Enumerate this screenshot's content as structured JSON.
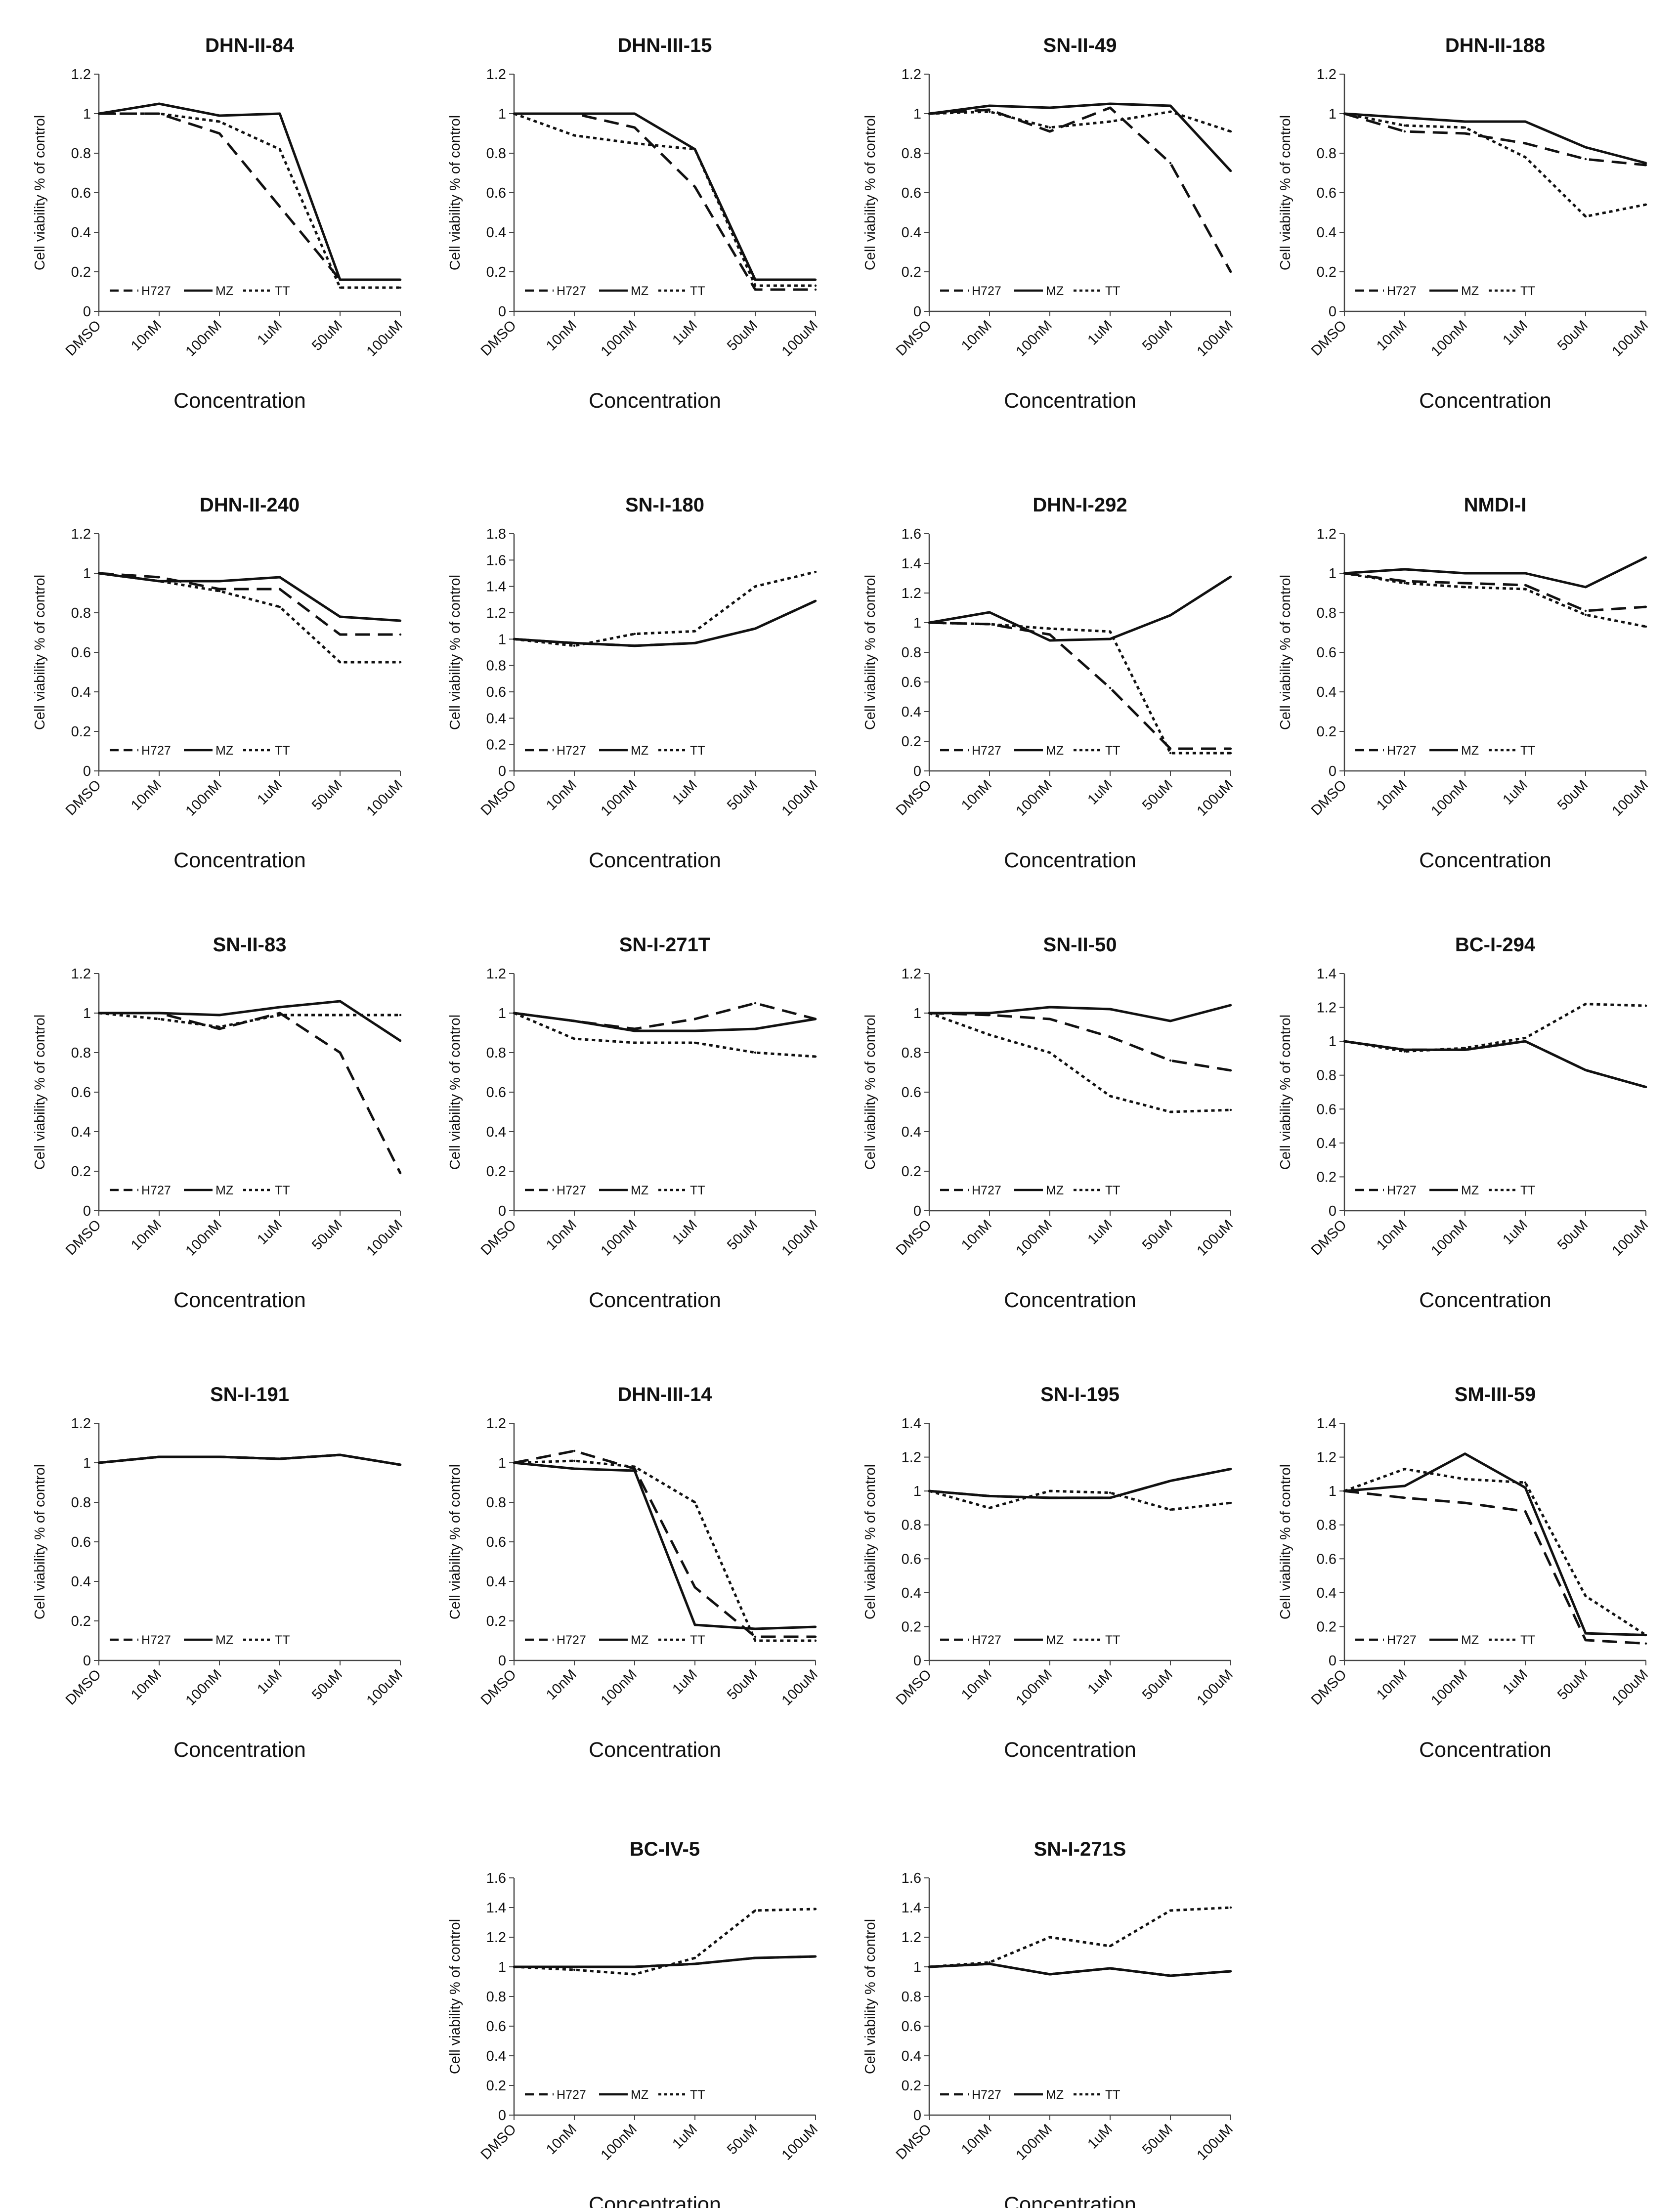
{
  "figure": {
    "x_axis_label": "Concentration",
    "y_axis_label": "Cell viability % of control",
    "legend_labels": [
      "H727",
      "MZ",
      "TT"
    ]
  },
  "chart_data": [
    {
      "type": "line",
      "title": "DHN-II-84",
      "categories": [
        "DMSO",
        "10nM",
        "100nM",
        "1uM",
        "50uM",
        "100uM"
      ],
      "xlabel": "Concentration",
      "ylabel": "Cell viability % of control",
      "ylim": [
        0,
        1.2
      ],
      "yticks": [
        "0",
        "0.2",
        "0.4",
        "0.6",
        "0.8",
        "1",
        "1.2"
      ],
      "legend": "bottom-left",
      "series": [
        {
          "name": "H727",
          "values": [
            1,
            1.0,
            0.9,
            0.53,
            0.16,
            0.16
          ]
        },
        {
          "name": "MZ",
          "values": [
            1,
            1.05,
            0.99,
            1.0,
            0.16,
            0.16
          ]
        },
        {
          "name": "TT",
          "values": [
            1,
            1.0,
            0.96,
            0.82,
            0.12,
            0.12
          ]
        }
      ]
    },
    {
      "type": "line",
      "title": "DHN-III-15",
      "categories": [
        "DMSO",
        "10nM",
        "100nM",
        "1uM",
        "50uM",
        "100uM"
      ],
      "xlabel": "Concentration",
      "ylabel": "Cell viability % of control",
      "ylim": [
        0,
        1.2
      ],
      "yticks": [
        "0",
        "0.2",
        "0.4",
        "0.6",
        "0.8",
        "1",
        "1.2"
      ],
      "legend": "bottom-left",
      "series": [
        {
          "name": "H727",
          "values": [
            1,
            1.0,
            0.93,
            0.63,
            0.11,
            0.11
          ]
        },
        {
          "name": "MZ",
          "values": [
            1,
            1.0,
            1.0,
            0.82,
            0.16,
            0.16
          ]
        },
        {
          "name": "TT",
          "values": [
            1,
            0.89,
            0.85,
            0.82,
            0.13,
            0.13
          ]
        }
      ]
    },
    {
      "type": "line",
      "title": "SN-II-49",
      "categories": [
        "DMSO",
        "10nM",
        "100nM",
        "1uM",
        "50uM",
        "100uM"
      ],
      "xlabel": "Concentration",
      "ylabel": "Cell viability % of control",
      "ylim": [
        0,
        1.2
      ],
      "yticks": [
        "0",
        "0.2",
        "0.4",
        "0.6",
        "0.8",
        "1",
        "1.2"
      ],
      "legend": "bottom-left",
      "series": [
        {
          "name": "H727",
          "values": [
            1,
            1.02,
            0.91,
            1.03,
            0.75,
            0.2
          ]
        },
        {
          "name": "MZ",
          "values": [
            1,
            1.04,
            1.03,
            1.05,
            1.04,
            0.71
          ]
        },
        {
          "name": "TT",
          "values": [
            1,
            1.01,
            0.93,
            0.96,
            1.01,
            0.91
          ]
        }
      ]
    },
    {
      "type": "line",
      "title": "DHN-II-188",
      "categories": [
        "DMSO",
        "10nM",
        "100nM",
        "1uM",
        "50uM",
        "100uM"
      ],
      "xlabel": "Concentration",
      "ylabel": "Cell viability % of control",
      "ylim": [
        0,
        1.2
      ],
      "yticks": [
        "0",
        "0.2",
        "0.4",
        "0.6",
        "0.8",
        "1",
        "1.2"
      ],
      "legend": "bottom-left",
      "series": [
        {
          "name": "H727",
          "values": [
            1,
            0.91,
            0.9,
            0.85,
            0.77,
            0.74
          ]
        },
        {
          "name": "MZ",
          "values": [
            1,
            0.98,
            0.96,
            0.96,
            0.83,
            0.75
          ]
        },
        {
          "name": "TT",
          "values": [
            1,
            0.94,
            0.93,
            0.78,
            0.48,
            0.54
          ]
        }
      ]
    },
    {
      "type": "line",
      "title": "DHN-II-240",
      "categories": [
        "DMSO",
        "10nM",
        "100nM",
        "1uM",
        "50uM",
        "100uM"
      ],
      "xlabel": "Concentration",
      "ylabel": "Cell viability % of control",
      "ylim": [
        0,
        1.2
      ],
      "yticks": [
        "0",
        "0.2",
        "0.4",
        "0.6",
        "0.8",
        "1",
        "1.2"
      ],
      "legend": "bottom-left",
      "series": [
        {
          "name": "H727",
          "values": [
            1,
            0.98,
            0.92,
            0.92,
            0.69,
            0.69
          ]
        },
        {
          "name": "MZ",
          "values": [
            1,
            0.96,
            0.96,
            0.98,
            0.78,
            0.76
          ]
        },
        {
          "name": "TT",
          "values": [
            1,
            0.96,
            0.91,
            0.83,
            0.55,
            0.55
          ]
        }
      ]
    },
    {
      "type": "line",
      "title": "SN-I-180",
      "categories": [
        "DMSO",
        "10nM",
        "100nM",
        "1uM",
        "50uM",
        "100uM"
      ],
      "xlabel": "Concentration",
      "ylabel": "Cell viability % of control",
      "ylim": [
        0,
        1.8
      ],
      "yticks": [
        "0",
        "0.2",
        "0.4",
        "0.6",
        "0.8",
        "1",
        "1.2",
        "1.4",
        "1.6",
        "1.8"
      ],
      "legend": "bottom-left",
      "series": [
        {
          "name": "H727",
          "values": [
            1,
            0.97,
            0.95,
            0.97,
            1.08,
            1.29
          ]
        },
        {
          "name": "MZ",
          "values": [
            1,
            0.97,
            0.95,
            0.97,
            1.08,
            1.29
          ]
        },
        {
          "name": "TT",
          "values": [
            1,
            0.95,
            1.04,
            1.06,
            1.4,
            1.51
          ]
        }
      ]
    },
    {
      "type": "line",
      "title": "DHN-I-292",
      "categories": [
        "DMSO",
        "10nM",
        "100nM",
        "1uM",
        "50uM",
        "100uM"
      ],
      "xlabel": "Concentration",
      "ylabel": "Cell viability % of control",
      "ylim": [
        0,
        1.6
      ],
      "yticks": [
        "0",
        "0.2",
        "0.4",
        "0.6",
        "0.8",
        "1",
        "1.2",
        "1.4",
        "1.6"
      ],
      "legend": "bottom-left",
      "series": [
        {
          "name": "H727",
          "values": [
            1,
            0.99,
            0.92,
            0.56,
            0.15,
            0.15
          ]
        },
        {
          "name": "MZ",
          "values": [
            1,
            1.07,
            0.88,
            0.89,
            1.05,
            1.31
          ]
        },
        {
          "name": "TT",
          "values": [
            1,
            0.99,
            0.96,
            0.94,
            0.12,
            0.12
          ]
        }
      ]
    },
    {
      "type": "line",
      "title": "NMDI-I",
      "categories": [
        "DMSO",
        "10nM",
        "100nM",
        "1uM",
        "50uM",
        "100uM"
      ],
      "xlabel": "Concentration",
      "ylabel": "Cell viability % of control",
      "ylim": [
        0,
        1.2
      ],
      "yticks": [
        "0",
        "0.2",
        "0.4",
        "0.6",
        "0.8",
        "1",
        "1.2"
      ],
      "legend": "bottom-left",
      "series": [
        {
          "name": "H727",
          "values": [
            1,
            0.96,
            0.95,
            0.94,
            0.81,
            0.83
          ]
        },
        {
          "name": "MZ",
          "values": [
            1,
            1.02,
            1.0,
            1.0,
            0.93,
            1.08
          ]
        },
        {
          "name": "TT",
          "values": [
            1,
            0.95,
            0.93,
            0.92,
            0.79,
            0.73
          ]
        }
      ]
    },
    {
      "type": "line",
      "title": "SN-II-83",
      "categories": [
        "DMSO",
        "10nM",
        "100nM",
        "1uM",
        "50uM",
        "100uM"
      ],
      "xlabel": "Concentration",
      "ylabel": "Cell viability % of control",
      "ylim": [
        0,
        1.2
      ],
      "yticks": [
        "0",
        "0.2",
        "0.4",
        "0.6",
        "0.8",
        "1",
        "1.2"
      ],
      "legend": "bottom-left",
      "series": [
        {
          "name": "H727",
          "values": [
            1,
            1.0,
            0.92,
            1.0,
            0.8,
            0.19
          ]
        },
        {
          "name": "MZ",
          "values": [
            1,
            1.0,
            0.99,
            1.03,
            1.06,
            0.86
          ]
        },
        {
          "name": "TT",
          "values": [
            1,
            0.97,
            0.93,
            0.99,
            0.99,
            0.99
          ]
        }
      ]
    },
    {
      "type": "line",
      "title": "SN-I-271T",
      "categories": [
        "DMSO",
        "10nM",
        "100nM",
        "1uM",
        "50uM",
        "100uM"
      ],
      "xlabel": "Concentration",
      "ylabel": "Cell viability % of control",
      "ylim": [
        0,
        1.2
      ],
      "yticks": [
        "0",
        "0.2",
        "0.4",
        "0.6",
        "0.8",
        "1",
        "1.2"
      ],
      "legend": "bottom-left",
      "series": [
        {
          "name": "H727",
          "values": [
            1,
            0.96,
            0.92,
            0.97,
            1.05,
            0.97
          ]
        },
        {
          "name": "MZ",
          "values": [
            1,
            0.96,
            0.91,
            0.91,
            0.92,
            0.97
          ]
        },
        {
          "name": "TT",
          "values": [
            1,
            0.87,
            0.85,
            0.85,
            0.8,
            0.78
          ]
        }
      ]
    },
    {
      "type": "line",
      "title": "SN-II-50",
      "categories": [
        "DMSO",
        "10nM",
        "100nM",
        "1uM",
        "50uM",
        "100uM"
      ],
      "xlabel": "Concentration",
      "ylabel": "Cell viability % of control",
      "ylim": [
        0,
        1.2
      ],
      "yticks": [
        "0",
        "0.2",
        "0.4",
        "0.6",
        "0.8",
        "1",
        "1.2"
      ],
      "legend": "bottom-left",
      "series": [
        {
          "name": "H727",
          "values": [
            1,
            0.99,
            0.97,
            0.88,
            0.76,
            0.71
          ]
        },
        {
          "name": "MZ",
          "values": [
            1,
            1.0,
            1.03,
            1.02,
            0.96,
            1.04
          ]
        },
        {
          "name": "TT",
          "values": [
            1,
            0.89,
            0.8,
            0.58,
            0.5,
            0.51
          ]
        }
      ]
    },
    {
      "type": "line",
      "title": "BC-I-294",
      "categories": [
        "DMSO",
        "10nM",
        "100nM",
        "1uM",
        "50uM",
        "100uM"
      ],
      "xlabel": "Concentration",
      "ylabel": "Cell viability % of control",
      "ylim": [
        0,
        1.4
      ],
      "yticks": [
        "0",
        "0.2",
        "0.4",
        "0.6",
        "0.8",
        "1",
        "1.2",
        "1.4"
      ],
      "legend": "bottom-left",
      "series": [
        {
          "name": "H727",
          "values": [
            1,
            0.95,
            0.95,
            1.0,
            0.83,
            0.73
          ]
        },
        {
          "name": "MZ",
          "values": [
            1,
            0.95,
            0.95,
            1.0,
            0.83,
            0.73
          ]
        },
        {
          "name": "TT",
          "values": [
            1,
            0.94,
            0.96,
            1.02,
            1.22,
            1.21
          ]
        }
      ]
    },
    {
      "type": "line",
      "title": "SN-I-191",
      "categories": [
        "DMSO",
        "10nM",
        "100nM",
        "1uM",
        "50uM",
        "100uM"
      ],
      "xlabel": "Concentration",
      "ylabel": "Cell viability % of control",
      "ylim": [
        0,
        1.2
      ],
      "yticks": [
        "0",
        "0.2",
        "0.4",
        "0.6",
        "0.8",
        "1",
        "1.2"
      ],
      "legend": "bottom-left",
      "series": [
        {
          "name": "H727",
          "values": [
            1,
            1.03,
            1.03,
            1.02,
            1.04,
            0.99
          ]
        },
        {
          "name": "MZ",
          "values": [
            1,
            1.03,
            1.03,
            1.02,
            1.04,
            0.99
          ]
        },
        {
          "name": "TT",
          "values": [
            1,
            1.03,
            1.03,
            1.02,
            1.04,
            0.99
          ]
        }
      ]
    },
    {
      "type": "line",
      "title": "DHN-III-14",
      "categories": [
        "DMSO",
        "10nM",
        "100nM",
        "1uM",
        "50uM",
        "100uM"
      ],
      "xlabel": "Concentration",
      "ylabel": "Cell viability % of control",
      "ylim": [
        0,
        1.2
      ],
      "yticks": [
        "0",
        "0.2",
        "0.4",
        "0.6",
        "0.8",
        "1",
        "1.2"
      ],
      "legend": "bottom-left",
      "series": [
        {
          "name": "H727",
          "values": [
            1,
            1.06,
            0.97,
            0.37,
            0.12,
            0.12
          ]
        },
        {
          "name": "MZ",
          "values": [
            1,
            0.97,
            0.96,
            0.18,
            0.16,
            0.17
          ]
        },
        {
          "name": "TT",
          "values": [
            1,
            1.01,
            0.98,
            0.8,
            0.1,
            0.1
          ]
        }
      ]
    },
    {
      "type": "line",
      "title": "SN-I-195",
      "categories": [
        "DMSO",
        "10nM",
        "100nM",
        "1uM",
        "50uM",
        "100uM"
      ],
      "xlabel": "Concentration",
      "ylabel": "Cell viability % of control",
      "ylim": [
        0,
        1.4
      ],
      "yticks": [
        "0",
        "0.2",
        "0.4",
        "0.6",
        "0.8",
        "1",
        "1.2",
        "1.4"
      ],
      "legend": "bottom-left",
      "series": [
        {
          "name": "H727",
          "values": [
            1,
            0.97,
            0.96,
            0.96,
            1.06,
            1.13
          ]
        },
        {
          "name": "MZ",
          "values": [
            1,
            0.97,
            0.96,
            0.96,
            1.06,
            1.13
          ]
        },
        {
          "name": "TT",
          "values": [
            1,
            0.9,
            1.0,
            0.99,
            0.89,
            0.93
          ]
        }
      ]
    },
    {
      "type": "line",
      "title": "SM-III-59",
      "categories": [
        "DMSO",
        "10nM",
        "100nM",
        "1uM",
        "50uM",
        "100uM"
      ],
      "xlabel": "Concentration",
      "ylabel": "Cell viability % of control",
      "ylim": [
        0,
        1.4
      ],
      "yticks": [
        "0",
        "0.2",
        "0.4",
        "0.6",
        "0.8",
        "1",
        "1.2",
        "1.4"
      ],
      "legend": "bottom-left",
      "series": [
        {
          "name": "H727",
          "values": [
            1,
            0.96,
            0.93,
            0.88,
            0.12,
            0.1
          ]
        },
        {
          "name": "MZ",
          "values": [
            1,
            1.03,
            1.22,
            1.02,
            0.16,
            0.15
          ]
        },
        {
          "name": "TT",
          "values": [
            1,
            1.13,
            1.07,
            1.05,
            0.38,
            0.15
          ]
        }
      ]
    },
    {
      "type": "line",
      "title": "BC-IV-5",
      "categories": [
        "DMSO",
        "10nM",
        "100nM",
        "1uM",
        "50uM",
        "100uM"
      ],
      "xlabel": "Concentration",
      "ylabel": "Cell viability % of control",
      "ylim": [
        0,
        1.6
      ],
      "yticks": [
        "0",
        "0.2",
        "0.4",
        "0.6",
        "0.8",
        "1",
        "1.2",
        "1.4",
        "1.6"
      ],
      "legend": "bottom-left",
      "series": [
        {
          "name": "H727",
          "values": [
            1,
            1.0,
            1.0,
            1.02,
            1.06,
            1.07
          ]
        },
        {
          "name": "MZ",
          "values": [
            1,
            1.0,
            1.0,
            1.02,
            1.06,
            1.07
          ]
        },
        {
          "name": "TT",
          "values": [
            1,
            0.98,
            0.95,
            1.06,
            1.38,
            1.39
          ]
        }
      ]
    },
    {
      "type": "line",
      "title": "SN-I-271S",
      "categories": [
        "DMSO",
        "10nM",
        "100nM",
        "1uM",
        "50uM",
        "100uM"
      ],
      "xlabel": "Concentration",
      "ylabel": "Cell viability % of control",
      "ylim": [
        0,
        1.6
      ],
      "yticks": [
        "0",
        "0.2",
        "0.4",
        "0.6",
        "0.8",
        "1",
        "1.2",
        "1.4",
        "1.6"
      ],
      "legend": "bottom-left",
      "series": [
        {
          "name": "H727",
          "values": [
            1,
            1.02,
            0.95,
            0.99,
            0.94,
            0.97
          ]
        },
        {
          "name": "MZ",
          "values": [
            1,
            1.02,
            0.95,
            0.99,
            0.94,
            0.97
          ]
        },
        {
          "name": "TT",
          "values": [
            1,
            1.03,
            1.2,
            1.14,
            1.38,
            1.4
          ]
        }
      ]
    }
  ]
}
